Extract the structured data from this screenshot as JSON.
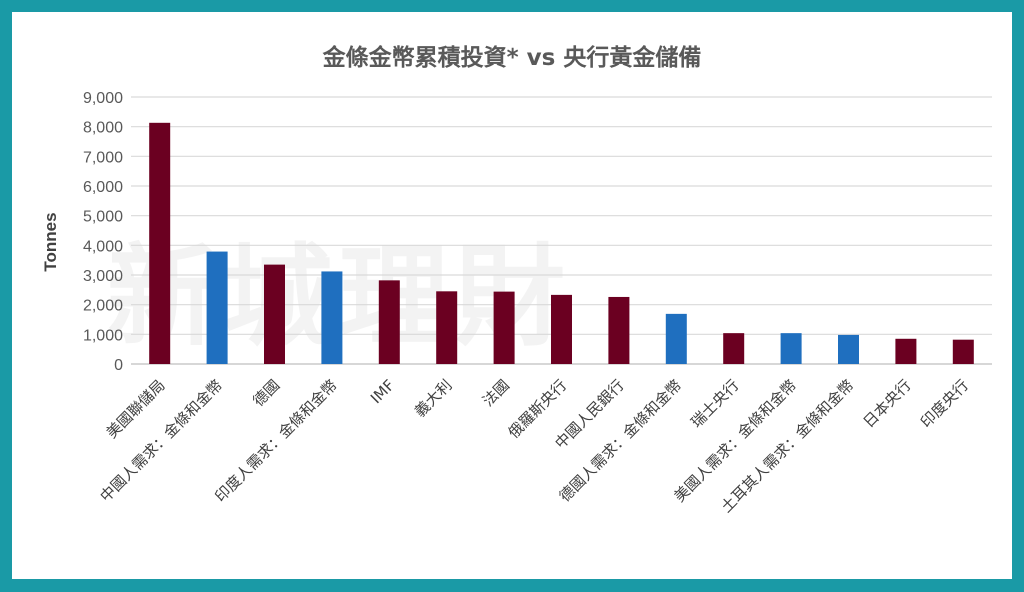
{
  "chart_data": {
    "type": "bar",
    "title": "金條金幣累積投資* vs 央行黃金儲備",
    "xlabel": "",
    "ylabel": "Tonnes",
    "ylim": [
      0,
      9000
    ],
    "yticks": [
      "0",
      "1,000",
      "2,000",
      "3,000",
      "4,000",
      "5,000",
      "6,000",
      "7,000",
      "8,000",
      "9,000"
    ],
    "grid": true,
    "categories": [
      "美國聯儲局",
      "中國人需求：金條和金幣",
      "德國",
      "印度人需求：金條和金幣",
      "IMF",
      "義大利",
      "法國",
      "俄羅斯央行",
      "中國人民銀行",
      "德國人需求：金條和金幣",
      "瑞士央行",
      "美國人需求：金條和金幣",
      "土耳其人需求：金條和金幣",
      "日本央行",
      "印度央行"
    ],
    "values": [
      8130,
      3790,
      3350,
      3120,
      2820,
      2450,
      2440,
      2330,
      2260,
      1690,
      1040,
      1040,
      980,
      850,
      820
    ],
    "bar_colors": [
      "#6b0021",
      "#1f6fbf",
      "#6b0021",
      "#1f6fbf",
      "#6b0021",
      "#6b0021",
      "#6b0021",
      "#6b0021",
      "#6b0021",
      "#1f6fbf",
      "#6b0021",
      "#1f6fbf",
      "#1f6fbf",
      "#6b0021",
      "#6b0021"
    ],
    "colors": {
      "central_bank": "#6b0021",
      "coin_bar_demand": "#1f6fbf",
      "grid": "#d9d9d9",
      "frame": "#1a9aa6"
    }
  },
  "watermark": "新城理財"
}
